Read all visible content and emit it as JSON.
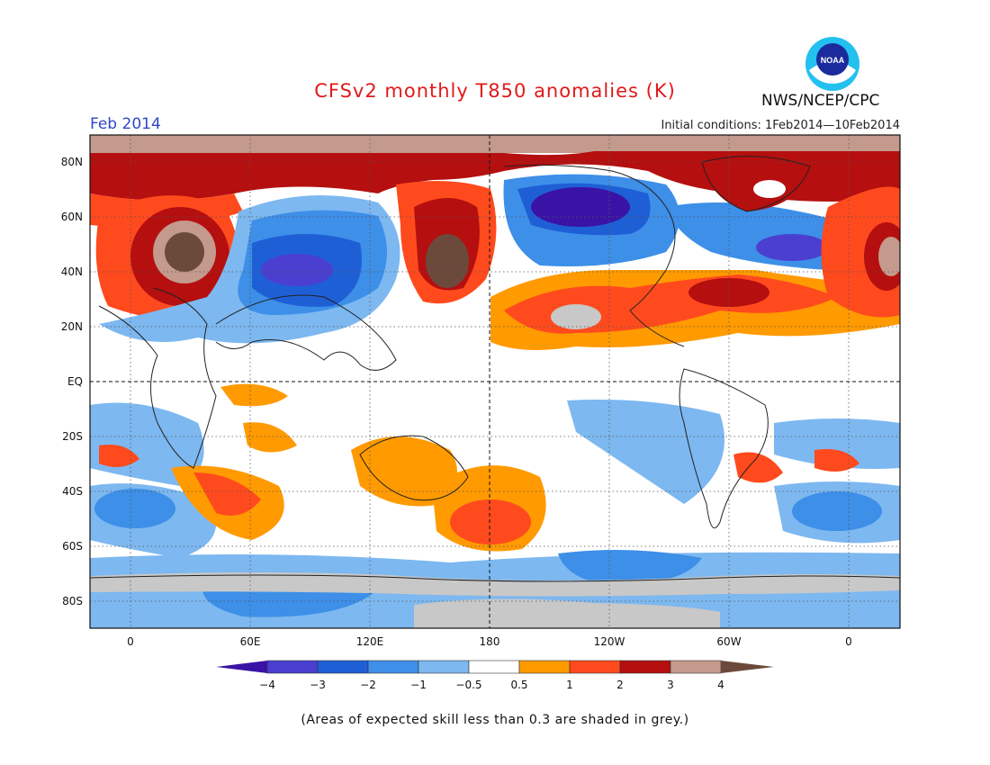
{
  "title": "CFSv2 monthly T850 anomalies (K)",
  "month": "Feb 2014",
  "initial_conditions": "Initial conditions: 1Feb2014—10Feb2014",
  "agency": "NWS/NCEP/CPC",
  "logo_text": "NOAA",
  "lat_labels": [
    "80N",
    "60N",
    "40N",
    "20N",
    "EQ",
    "20S",
    "40S",
    "60S",
    "80S"
  ],
  "lon_labels": [
    "0",
    "60E",
    "120E",
    "180",
    "120W",
    "60W",
    "0"
  ],
  "colorbar": {
    "labels": [
      "−4",
      "−3",
      "−2",
      "−1",
      "−0.5",
      "0.5",
      "1",
      "2",
      "3",
      "4"
    ],
    "colors": [
      "#3a13a6",
      "#4b3fd0",
      "#1f5fd6",
      "#3d8fe8",
      "#7db8f0",
      "#ffffff",
      "#ff9a00",
      "#ff4a1e",
      "#b50f0f",
      "#c49a8c",
      "#6b4a3c"
    ]
  },
  "footnote": "(Areas of expected skill less than 0.3 are shaded in grey.)",
  "colors": {
    "title": "#e01a1a",
    "month": "#2f47c8",
    "skill_grey": "#c8c8c8"
  }
}
